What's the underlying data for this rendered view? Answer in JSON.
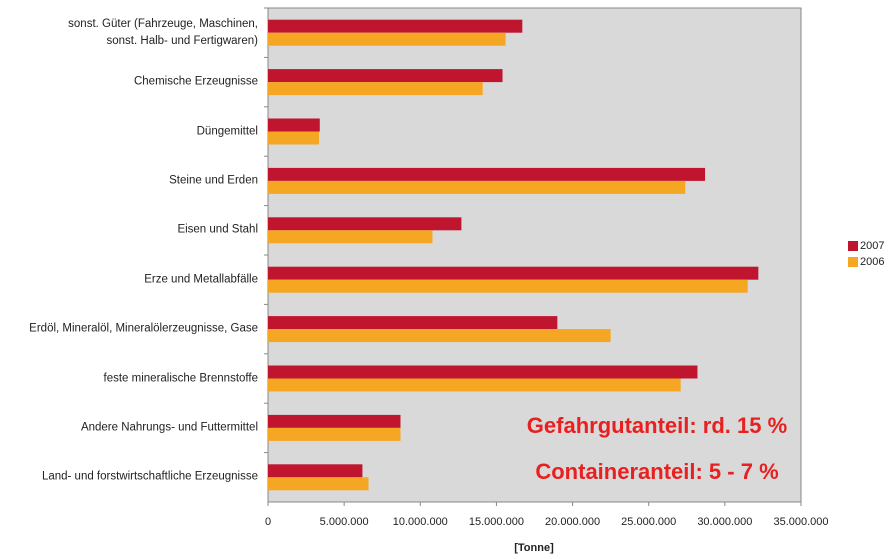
{
  "chart_data": {
    "type": "barh",
    "categories": [
      "sonst. Güter (Fahrzeuge, Maschinen,\nsonst. Halb- und Fertigwaren)",
      "Chemische Erzeugnisse",
      "Düngemittel",
      "Steine und Erden",
      "Eisen und  Stahl",
      "Erze und Metallabfälle",
      "Erdöl, Mineralöl, Mineralölerzeugnisse, Gase",
      "feste mineralische Brennstoffe",
      "Andere Nahrungs- und Futtermittel",
      "Land- und forstwirtschaftliche Erzeugnisse"
    ],
    "series": [
      {
        "name": "2007",
        "color": "#c0152f",
        "values": [
          16700000,
          15400000,
          3400000,
          28700000,
          12700000,
          32200000,
          19000000,
          28200000,
          8700000,
          6200000
        ]
      },
      {
        "name": "2006",
        "color": "#f5a623",
        "values": [
          15600000,
          14100000,
          3350000,
          27400000,
          10800000,
          31500000,
          22500000,
          27100000,
          8700000,
          6600000
        ]
      }
    ],
    "xlim": [
      0,
      35000000
    ],
    "xticks": [
      0,
      {
        "value": 5000000,
        "label": "5.000.000"
      },
      {
        "value": 10000000,
        "label": "10.000.000"
      },
      {
        "value": 15000000,
        "label": "15.000.000"
      },
      {
        "value": 20000000,
        "label": "20.000.000"
      },
      {
        "value": 25000000,
        "label": "25.000.000"
      },
      {
        "value": 30000000,
        "label": "30.000.000"
      },
      {
        "value": 35000000,
        "label": "35.000.000"
      }
    ],
    "xlabel": "[Tonne]",
    "legend": "right",
    "annotations": [
      "Gefahrgutanteil: rd. 15 %",
      "Containeranteil: 5 - 7 %"
    ]
  }
}
